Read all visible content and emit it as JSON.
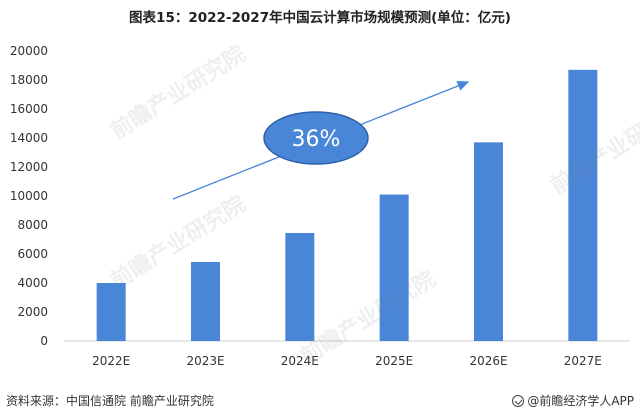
{
  "chart_data": {
    "type": "bar",
    "title": "图表15：2022-2027年中国云计算市场规模预测(单位：亿元)",
    "categories": [
      "2022E",
      "2023E",
      "2024E",
      "2025E",
      "2026E",
      "2027E"
    ],
    "values": [
      4000,
      5450,
      7450,
      10100,
      13700,
      18700
    ],
    "ylim": [
      0,
      20000
    ],
    "yticks": [
      0,
      2000,
      4000,
      6000,
      8000,
      10000,
      12000,
      14000,
      16000,
      18000,
      20000
    ],
    "xlabel": "",
    "ylabel": "",
    "grid": false,
    "bar_color": "#4a86d8",
    "annotation": {
      "label": "36%",
      "fill_color": "#4a86d8",
      "stroke_color": "#2d5ea8",
      "arrow_color": "#4a86d8"
    }
  },
  "footer": {
    "source": "资料来源：中国信通院 前瞻产业研究院",
    "brand": "@前瞻经济学人APP"
  },
  "watermark": "前瞻产业研究院"
}
